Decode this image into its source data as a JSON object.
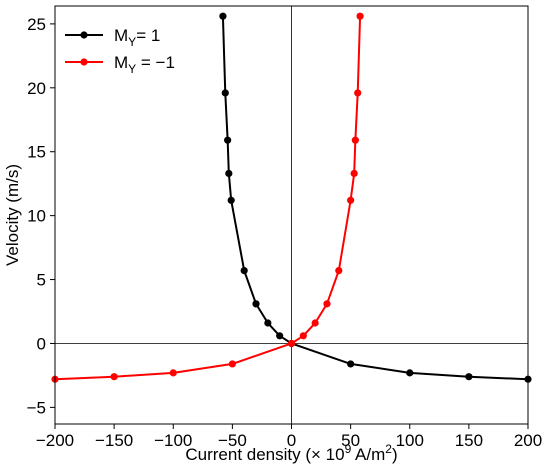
{
  "chart_data": {
    "type": "line",
    "title": "",
    "xlabel": {
      "main": "Current density (× 10",
      "sup1": "9",
      "unit": " A/m",
      "sup2": "2",
      "close": ")"
    },
    "ylabel": "Velocity (m/s)",
    "xlim": [
      -200,
      200
    ],
    "ylim": [
      -6.3,
      26.4
    ],
    "xticks": [
      -200,
      -150,
      -100,
      -50,
      0,
      50,
      100,
      150,
      200
    ],
    "xtick_labels": [
      "−200",
      "−150",
      "−100",
      "−50",
      "0",
      "50",
      "100",
      "150",
      "200"
    ],
    "yticks": [
      -5,
      0,
      5,
      10,
      15,
      20,
      25
    ],
    "ytick_labels": [
      "−5",
      "0",
      "5",
      "10",
      "15",
      "20",
      "25"
    ],
    "grid": false,
    "reference_lines": {
      "x": 0,
      "y": 0
    },
    "legend_position": "top-left",
    "series": [
      {
        "name": "M",
        "name_sub": "Y",
        "name_rest": "= 1",
        "color": "#000000",
        "x": [
          -58,
          -56,
          -54,
          -53,
          -51,
          -40,
          -30,
          -20,
          -10,
          0,
          50,
          100,
          150,
          200
        ],
        "y": [
          25.6,
          19.6,
          15.9,
          13.3,
          11.2,
          5.7,
          3.1,
          1.6,
          0.6,
          0,
          -1.6,
          -2.3,
          -2.6,
          -2.8
        ]
      },
      {
        "name": "M",
        "name_sub": "Y",
        "name_rest": " = −1",
        "color": "#ff0000",
        "x": [
          -200,
          -150,
          -100,
          -50,
          0,
          10,
          20,
          30,
          40,
          50,
          53,
          54,
          56,
          58
        ],
        "y": [
          -2.8,
          -2.6,
          -2.3,
          -1.6,
          0,
          0.6,
          1.6,
          3.1,
          5.7,
          11.2,
          13.3,
          15.9,
          19.6,
          25.6
        ]
      }
    ]
  }
}
